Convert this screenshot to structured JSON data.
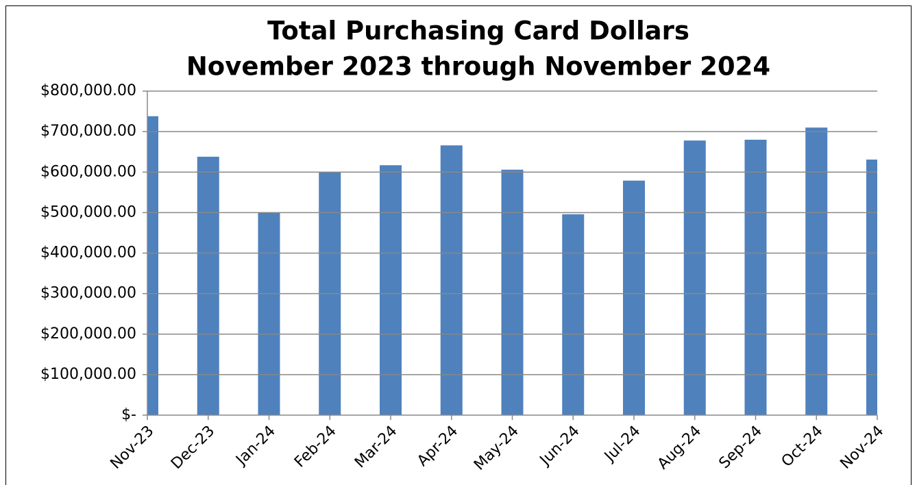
{
  "chart_data": {
    "type": "bar",
    "title": "Total Purchasing Card Dollars",
    "subtitle": "November 2023 through November 2024",
    "categories": [
      "Nov-23",
      "Dec-23",
      "Jan-24",
      "Feb-24",
      "Mar-24",
      "Apr-24",
      "May-24",
      "Jun-24",
      "Jul-24",
      "Aug-24",
      "Sep-24",
      "Oct-24",
      "Nov-24"
    ],
    "values": [
      738000,
      638000,
      501000,
      601000,
      617000,
      666000,
      606000,
      496000,
      579000,
      678000,
      680000,
      710000,
      631000
    ],
    "color": "#4f81bd",
    "ylim": [
      0,
      800000
    ],
    "yticks": [
      {
        "value": 0,
        "label": "$-"
      },
      {
        "value": 100000,
        "label": "$100,000.00"
      },
      {
        "value": 200000,
        "label": "$200,000.00"
      },
      {
        "value": 300000,
        "label": "$300,000.00"
      },
      {
        "value": 400000,
        "label": "$400,000.00"
      },
      {
        "value": 500000,
        "label": "$500,000.00"
      },
      {
        "value": 600000,
        "label": "$600,000.00"
      },
      {
        "value": 700000,
        "label": "$700,000.00"
      },
      {
        "value": 800000,
        "label": "$800,000.00"
      }
    ],
    "grid": true
  }
}
